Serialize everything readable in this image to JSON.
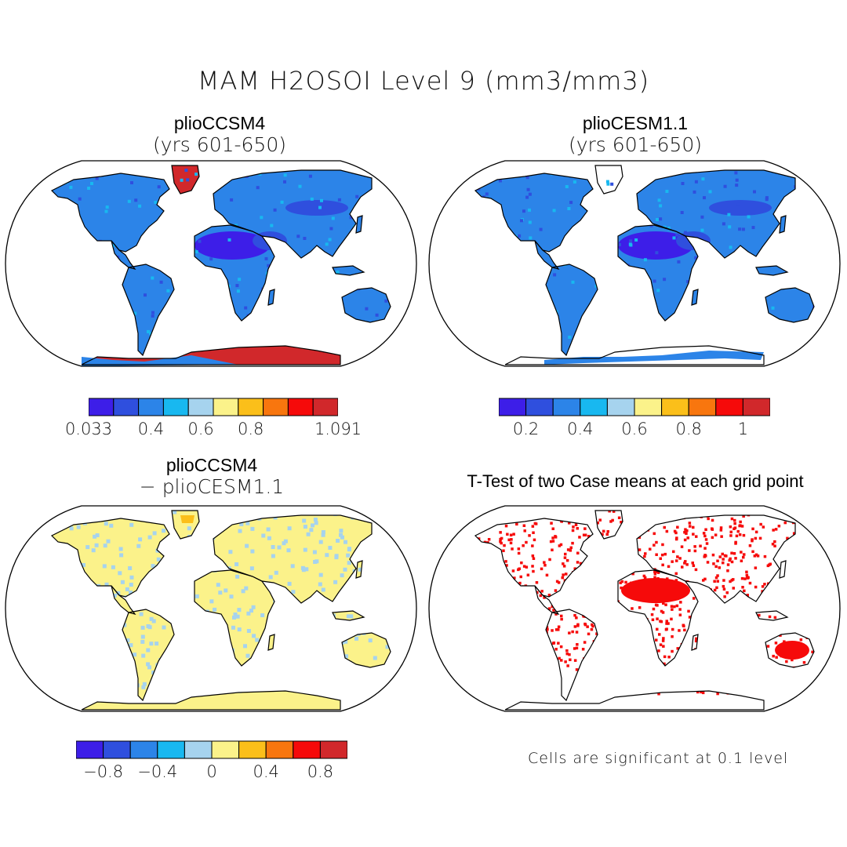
{
  "figure": {
    "title": "MAM H2OSOI Level 9 (mm3/mm3)"
  },
  "panels": [
    {
      "id": "p1",
      "title": "plioCCSM4",
      "subtitle": "(yrs 601-650)",
      "kind": "field-ccsm4",
      "colorbar": {
        "colors": [
          "#3d1ee8",
          "#2f4fde",
          "#2c84e8",
          "#18b8f0",
          "#a6d3ee",
          "#fbf28a",
          "#fbbf1a",
          "#f8760e",
          "#f60a0a",
          "#d1282b"
        ],
        "labels": [
          "0.033",
          "0.4",
          "0.6",
          "0.8",
          "1.091"
        ],
        "label_positions": [
          0,
          2.5,
          4.5,
          6.5,
          10
        ]
      }
    },
    {
      "id": "p2",
      "title": "plioCESM1.1",
      "subtitle": "(yrs 601-650)",
      "kind": "field-cesm",
      "colorbar": {
        "colors": [
          "#3d1ee8",
          "#2f4fde",
          "#2c84e8",
          "#18b8f0",
          "#a6d3ee",
          "#fbf28a",
          "#fbbf1a",
          "#f8760e",
          "#f60a0a",
          "#d1282b"
        ],
        "labels": [
          "0.2",
          "0.4",
          "0.6",
          "0.8",
          "1"
        ],
        "label_positions": [
          1,
          3,
          5,
          7,
          9
        ]
      }
    },
    {
      "id": "p3",
      "title": "plioCCSM4",
      "subtitle": "− plioCESM1.1",
      "kind": "difference",
      "colorbar": {
        "colors": [
          "#3d1ee8",
          "#2f4fde",
          "#2c84e8",
          "#18b8f0",
          "#a6d3ee",
          "#fbf28a",
          "#fbbf1a",
          "#f8760e",
          "#f60a0a",
          "#d1282b"
        ],
        "labels": [
          "−0.8",
          "−0.4",
          "0",
          "0.4",
          "0.8"
        ],
        "label_positions": [
          1,
          3,
          5,
          7,
          9
        ]
      }
    },
    {
      "id": "p4",
      "title": "T-Test of two Case means at each grid point",
      "subtitle": "",
      "kind": "ttest",
      "note": "Cells are significant at 0.1 level"
    }
  ],
  "colors": {
    "land_ccsm4": "#2c84e8",
    "land_cesm": "#2c84e8",
    "sahara": "#3d1ee8",
    "antarctica_ccsm4": "#d1282b",
    "greenland_ccsm4": "#d1282b",
    "diff_pos": "#fbf28a",
    "diff_zero": "#a6d3ee",
    "ttest": "#f60a0a",
    "ocean": "#ffffff",
    "outline": "#000000"
  }
}
